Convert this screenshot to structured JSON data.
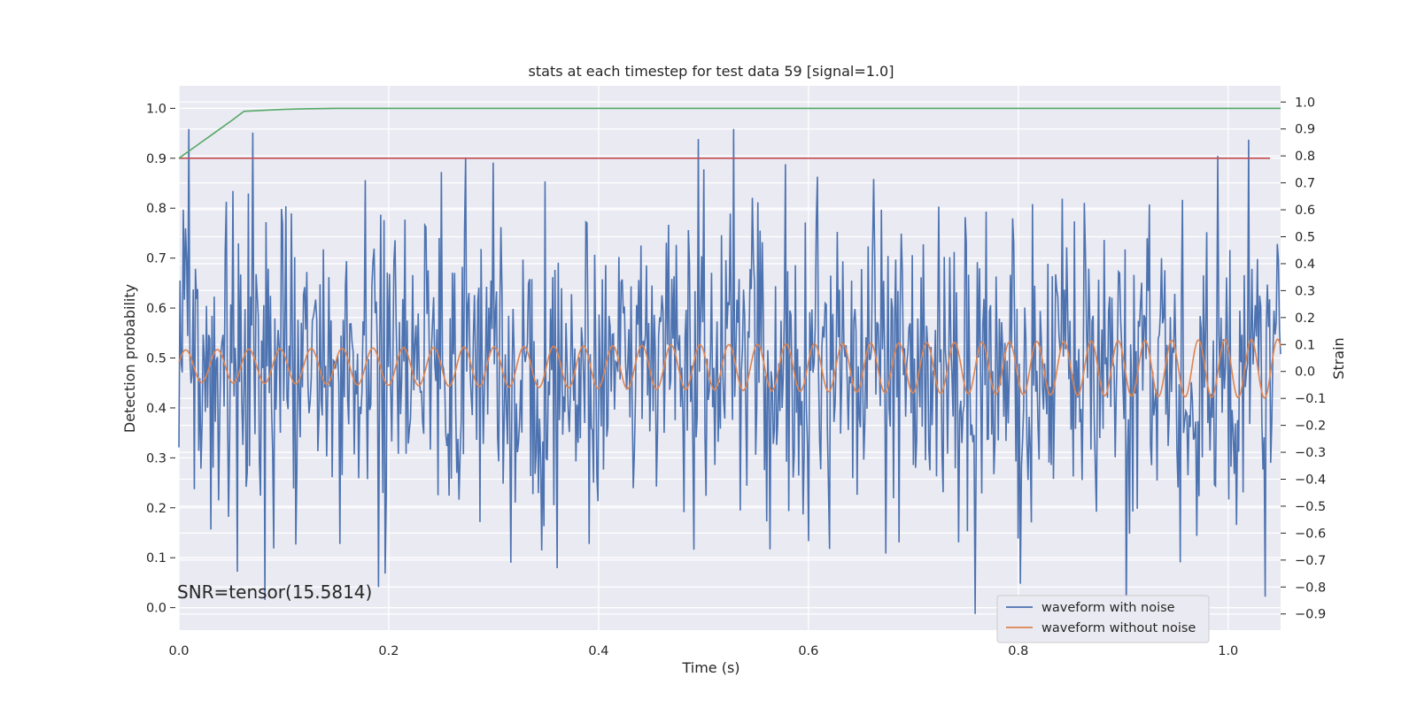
{
  "chart_data": {
    "type": "line",
    "title": "stats at each timestep for test data 59 [signal=1.0]",
    "xlabel": "Time (s)",
    "ylabel_left": "Detection probability",
    "ylabel_right": "Strain",
    "xlim": [
      0,
      1.05
    ],
    "ylim_left": [
      -0.045,
      1.045
    ],
    "ylim_right": [
      -0.96,
      1.06
    ],
    "x_ticks": [
      "0.0",
      "0.2",
      "0.4",
      "0.6",
      "0.8",
      "1.0"
    ],
    "y_ticks_left": [
      "0.0",
      "0.1",
      "0.2",
      "0.3",
      "0.4",
      "0.5",
      "0.6",
      "0.7",
      "0.8",
      "0.9",
      "1.0"
    ],
    "y_ticks_right": [
      "−0.9",
      "−0.8",
      "−0.7",
      "−0.6",
      "−0.5",
      "−0.4",
      "−0.3",
      "−0.2",
      "−0.1",
      "0.0",
      "0.1",
      "0.2",
      "0.3",
      "0.4",
      "0.5",
      "0.6",
      "0.7",
      "0.8",
      "0.9",
      "1.0"
    ],
    "grid": true,
    "legend_placement": "lower-right",
    "annotation": "SNR=tensor(15.5814)",
    "detection_probability": {
      "color": "#55a868",
      "axis": "left",
      "x": [
        0.0,
        0.01,
        0.02,
        0.03,
        0.04,
        0.05,
        0.062,
        0.08,
        0.1,
        0.12,
        0.15,
        0.2,
        0.4,
        0.6,
        0.8,
        1.0,
        1.05
      ],
      "y": [
        0.9,
        0.915,
        0.93,
        0.945,
        0.96,
        0.975,
        0.994,
        0.996,
        0.998,
        0.999,
        1.0,
        1.0,
        1.0,
        1.0,
        1.0,
        1.0,
        1.0
      ]
    },
    "threshold": {
      "color": "#c44e52",
      "axis": "left",
      "x": [
        0.0,
        1.04
      ],
      "y": [
        0.9,
        0.9
      ]
    },
    "series": [
      {
        "name": "waveform with noise",
        "color": "#4c72b0",
        "axis": "right",
        "n_points": 1000,
        "noise_std": 0.28,
        "spikes": [
          {
            "x": 0.004,
            "y": 0.6
          },
          {
            "x": 0.052,
            "y": 0.67
          },
          {
            "x": 0.153,
            "y": -0.64
          },
          {
            "x": 0.19,
            "y": -0.8
          },
          {
            "x": 0.197,
            "y": -0.75
          },
          {
            "x": 0.25,
            "y": 0.74
          },
          {
            "x": 0.316,
            "y": -0.71
          },
          {
            "x": 0.36,
            "y": -0.73
          },
          {
            "x": 0.5,
            "y": 0.75
          },
          {
            "x": 0.6,
            "y": -0.63
          },
          {
            "x": 0.8,
            "y": -0.62
          },
          {
            "x": 0.99,
            "y": 0.8
          },
          {
            "x": 1.02,
            "y": 0.86
          },
          {
            "x": 0.67,
            "y": 0.6
          },
          {
            "x": 0.925,
            "y": 0.62
          },
          {
            "x": 0.97,
            "y": -0.61
          }
        ]
      },
      {
        "name": "waveform without noise",
        "color": "#dd8452",
        "axis": "right",
        "x_points": 1000,
        "freq_hz_start": 33,
        "freq_hz_end": 40,
        "amp_start": 0.06,
        "amp_end": 0.11,
        "offset_start": 0.02,
        "offset_end": 0.01
      }
    ]
  }
}
